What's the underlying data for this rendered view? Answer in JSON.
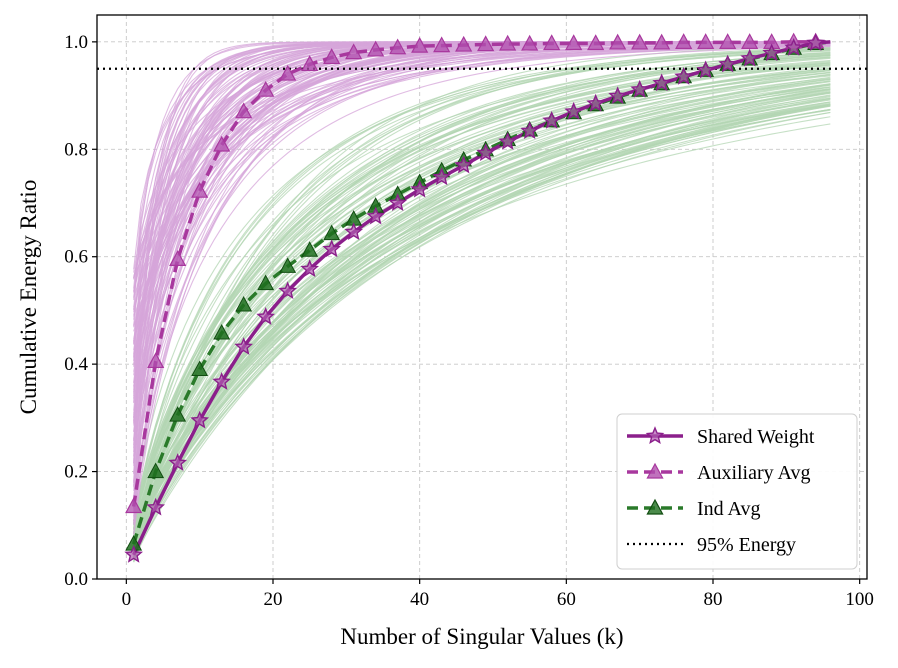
{
  "chart_data": {
    "type": "line",
    "title": "",
    "xlabel": "Number of Singular Values (k)",
    "ylabel": "Cumulative Energy Ratio",
    "xlim": [
      -4,
      101
    ],
    "ylim": [
      0,
      1.05
    ],
    "x_ticks": [
      0,
      20,
      40,
      60,
      80,
      100
    ],
    "y_ticks": [
      0.0,
      0.2,
      0.4,
      0.6,
      0.8,
      1.0
    ],
    "x_tick_labels": [
      "0",
      "20",
      "40",
      "60",
      "80",
      "100"
    ],
    "y_tick_labels": [
      "0.0",
      "0.2",
      "0.4",
      "0.6",
      "0.8",
      "1.0"
    ],
    "grid": true,
    "legend_position": "lower-right",
    "colors": {
      "shared": "#8b1f8b",
      "auxiliary": "#a8389e",
      "ind": "#2a7a2a",
      "aux_band": "#d6a6d9",
      "ind_band": "#b3d6b3",
      "threshold": "#000000"
    },
    "x": [
      1,
      4,
      7,
      10,
      13,
      16,
      19,
      22,
      25,
      28,
      31,
      34,
      37,
      40,
      43,
      46,
      49,
      52,
      55,
      58,
      61,
      64,
      67,
      70,
      73,
      76,
      79,
      82,
      85,
      88,
      91,
      94
    ],
    "series": [
      {
        "name": "Shared Weight",
        "style": "solid-star",
        "values": [
          0.045,
          0.133,
          0.216,
          0.295,
          0.367,
          0.432,
          0.488,
          0.536,
          0.577,
          0.614,
          0.646,
          0.675,
          0.7,
          0.725,
          0.748,
          0.77,
          0.793,
          0.814,
          0.834,
          0.853,
          0.87,
          0.885,
          0.899,
          0.911,
          0.923,
          0.935,
          0.947,
          0.958,
          0.969,
          0.979,
          0.989,
          0.998
        ]
      },
      {
        "name": "Auxiliary Avg",
        "style": "dashed-triangle",
        "values": [
          0.135,
          0.405,
          0.595,
          0.722,
          0.808,
          0.87,
          0.91,
          0.94,
          0.958,
          0.971,
          0.98,
          0.985,
          0.989,
          0.992,
          0.993,
          0.994,
          0.995,
          0.996,
          0.996,
          0.997,
          0.997,
          0.997,
          0.998,
          0.998,
          0.998,
          0.999,
          0.999,
          0.999,
          0.999,
          0.999,
          1.0,
          1.0
        ]
      },
      {
        "name": "Ind Avg",
        "style": "dashed-triangle",
        "values": [
          0.065,
          0.2,
          0.305,
          0.39,
          0.458,
          0.51,
          0.55,
          0.582,
          0.612,
          0.643,
          0.67,
          0.694,
          0.716,
          0.738,
          0.76,
          0.78,
          0.799,
          0.818,
          0.836,
          0.853,
          0.868,
          0.883,
          0.897,
          0.91,
          0.922,
          0.935,
          0.947,
          0.958,
          0.968,
          0.978,
          0.988,
          0.997
        ]
      },
      {
        "name": "95% Energy",
        "style": "dotted",
        "y": 0.95
      }
    ]
  }
}
